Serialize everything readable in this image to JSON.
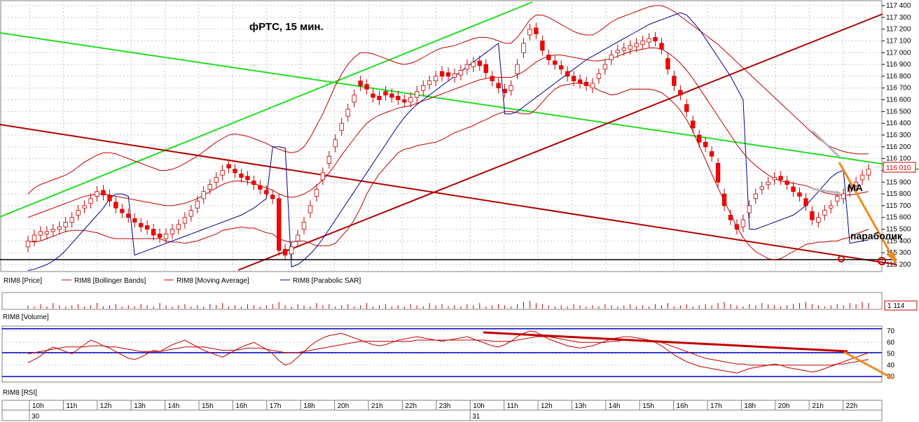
{
  "title": "фРТС, 15 мин.",
  "annotations": {
    "ma": "MA",
    "parabolic": "параболик"
  },
  "legend": [
    {
      "label": "RIM8 [Price]",
      "color": "#000000",
      "kind": "none"
    },
    {
      "label": "RIM8 [Bollinger Bands]",
      "color": "#c00000",
      "kind": "line"
    },
    {
      "label": "RIM8 [Moving Average]",
      "color": "#c00000",
      "kind": "line"
    },
    {
      "label": "RIM8 [Parabolic SAR]",
      "color": "#0000a0",
      "kind": "line"
    }
  ],
  "panel_labels": {
    "volume": "RIM8 [Volume]",
    "rsi": "RIM8 [RSI]"
  },
  "current_price": "116 010",
  "current_volume": "1 114",
  "price_axis": [
    "117 400",
    "117 300",
    "117 200",
    "117 100",
    "117 000",
    "116 900",
    "116 800",
    "116 700",
    "116 600",
    "116 500",
    "116 400",
    "116 300",
    "116 200",
    "116 100",
    "116 000",
    "115 900",
    "115 800",
    "115 700",
    "115 600",
    "115 500",
    "115 400",
    "115 300",
    "115 200"
  ],
  "rsi_axis": [
    "70",
    "60",
    "50",
    "40",
    "30"
  ],
  "time_axis": [
    "10h",
    "11h",
    "12h",
    "13h",
    "14h",
    "15h",
    "16h",
    "17h",
    "18h",
    "20h",
    "21h",
    "22h",
    "23h",
    "10h",
    "11h",
    "12h",
    "13h",
    "14h",
    "15h",
    "16h",
    "17h",
    "18h",
    "20h",
    "21h",
    "22h"
  ],
  "date_labels": [
    "30",
    "31"
  ],
  "colors": {
    "up": "#ffffff",
    "down": "#ff0000",
    "candle_edge": "#c00000",
    "bb": "#c00000",
    "sar": "#000090",
    "green": "#22dd22",
    "trend": "#c00000",
    "orange": "#f08a1c",
    "grid": "#c8c8c8",
    "rsi_band": "#0000c0"
  },
  "chart_data": {
    "type": "candlestick",
    "ylim": [
      115140,
      117420
    ],
    "close": [
      115400,
      115450,
      115480,
      115480,
      115500,
      115520,
      115560,
      115600,
      115660,
      115700,
      115760,
      115820,
      115790,
      115740,
      115680,
      115640,
      115600,
      115560,
      115520,
      115500,
      115450,
      115430,
      115460,
      115500,
      115540,
      115600,
      115660,
      115740,
      115820,
      115880,
      115940,
      116000,
      116020,
      115980,
      115940,
      115920,
      115880,
      115840,
      115800,
      115760,
      115320,
      115280,
      115350,
      115450,
      115560,
      115700,
      115840,
      115980,
      116120,
      116260,
      116400,
      116520,
      116640,
      116720,
      116690,
      116620,
      116600,
      116640,
      116620,
      116600,
      116580,
      116620,
      116670,
      116720,
      116760,
      116800,
      116800,
      116800,
      116820,
      116850,
      116900,
      116920,
      116890,
      116830,
      116760,
      116700,
      116660,
      116720,
      116900,
      117080,
      117200,
      117160,
      117020,
      116940,
      116900,
      116860,
      116800,
      116760,
      116740,
      116720,
      116740,
      116820,
      116900,
      116980,
      117020,
      117040,
      117060,
      117080,
      117100,
      117120,
      117100,
      117030,
      116860,
      116720,
      116640,
      116500,
      116360,
      116240,
      116200,
      116120,
      115900,
      115700,
      115580,
      115500,
      115580,
      115700,
      115800,
      115860,
      115900,
      115940,
      115920,
      115880,
      115820,
      115780,
      115700,
      115580,
      115600,
      115660,
      115700,
      115780,
      115800,
      115860,
      115900,
      115960,
      116010
    ],
    "open": [
      115350,
      115400,
      115450,
      115460,
      115480,
      115500,
      115520,
      115560,
      115620,
      115680,
      115720,
      115780,
      115830,
      115790,
      115730,
      115670,
      115630,
      115590,
      115550,
      115530,
      115500,
      115460,
      115420,
      115460,
      115500,
      115550,
      115610,
      115680,
      115760,
      115840,
      115900,
      115960,
      116050,
      116010,
      115970,
      115950,
      115910,
      115870,
      115830,
      115790,
      115760,
      115330,
      115290,
      115400,
      115500,
      115640,
      115780,
      115920,
      116060,
      116200,
      116340,
      116460,
      116580,
      116760,
      116730,
      116650,
      116630,
      116670,
      116650,
      116630,
      116600,
      116580,
      116620,
      116680,
      116730,
      116760,
      116840,
      116830,
      116790,
      116810,
      116860,
      116880,
      116930,
      116900,
      116800,
      116740,
      116690,
      116680,
      116820,
      117000,
      117150,
      117210,
      117100,
      116980,
      116930,
      116890,
      116840,
      116800,
      116770,
      116750,
      116700,
      116780,
      116860,
      116940,
      117000,
      117020,
      117030,
      117050,
      117070,
      117090,
      117130,
      117080,
      116950,
      116800,
      116680,
      116560,
      116420,
      116300,
      116240,
      116160,
      116060,
      115800,
      115620,
      115540,
      115520,
      115640,
      115760,
      115840,
      115880,
      115920,
      115950,
      115910,
      115860,
      115810,
      115760,
      115650,
      115560,
      115620,
      115680,
      115740,
      115760,
      115820,
      115870,
      115920,
      115960
    ],
    "bb_upper": [
      115800,
      115850,
      115880,
      115900,
      115920,
      115940,
      115960,
      115990,
      116030,
      116070,
      116100,
      116130,
      116150,
      116150,
      116140,
      116120,
      116100,
      116080,
      116060,
      116040,
      116020,
      116000,
      116000,
      116010,
      116030,
      116060,
      116090,
      116120,
      116160,
      116200,
      116240,
      116270,
      116300,
      116310,
      116300,
      116290,
      116270,
      116250,
      116230,
      116200,
      116180,
      116160,
      116150,
      116160,
      116200,
      116280,
      116380,
      116480,
      116600,
      116720,
      116820,
      116900,
      116960,
      117000,
      117000,
      116990,
      116970,
      116950,
      116930,
      116910,
      116900,
      116910,
      116930,
      116960,
      116990,
      117020,
      117040,
      117050,
      117060,
      117080,
      117100,
      117120,
      117130,
      117130,
      117120,
      117100,
      117080,
      117080,
      117130,
      117200,
      117280,
      117320,
      117320,
      117300,
      117270,
      117240,
      117210,
      117180,
      117160,
      117150,
      117150,
      117180,
      117220,
      117260,
      117290,
      117310,
      117330,
      117350,
      117370,
      117390,
      117400,
      117400,
      117380,
      117350,
      117310,
      117270,
      117230,
      117190,
      117150,
      117110,
      117070,
      117020,
      116970,
      116920,
      116870,
      116820,
      116770,
      116720,
      116670,
      116620,
      116570,
      116520,
      116470,
      116420,
      116370,
      116320,
      116270,
      116230,
      116200,
      116180,
      116160,
      116150,
      116140,
      116140,
      116140
    ],
    "bb_middle": [
      115600,
      115620,
      115640,
      115660,
      115680,
      115700,
      115720,
      115740,
      115760,
      115780,
      115790,
      115800,
      115800,
      115790,
      115780,
      115770,
      115760,
      115750,
      115740,
      115730,
      115720,
      115710,
      115700,
      115700,
      115710,
      115720,
      115740,
      115760,
      115790,
      115820,
      115850,
      115880,
      115900,
      115910,
      115910,
      115900,
      115890,
      115870,
      115850,
      115830,
      115800,
      115780,
      115770,
      115780,
      115800,
      115830,
      115870,
      115920,
      115980,
      116050,
      116130,
      116200,
      116270,
      116340,
      116400,
      116440,
      116470,
      116490,
      116510,
      116530,
      116540,
      116550,
      116570,
      116590,
      116610,
      116630,
      116650,
      116670,
      116690,
      116710,
      116730,
      116750,
      116770,
      116780,
      116790,
      116790,
      116790,
      116790,
      116810,
      116840,
      116880,
      116920,
      116950,
      116970,
      116980,
      116980,
      116970,
      116960,
      116950,
      116940,
      116930,
      116930,
      116940,
      116950,
      116970,
      116990,
      117010,
      117020,
      117030,
      117040,
      117040,
      117030,
      117000,
      116960,
      116910,
      116850,
      116780,
      116700,
      116620,
      116540,
      116460,
      116380,
      116300,
      116220,
      116150,
      116090,
      116040,
      116000,
      115960,
      115930,
      115910,
      115900,
      115890,
      115880,
      115870,
      115850,
      115830,
      115810,
      115800,
      115790,
      115790,
      115790,
      115800,
      115810,
      115820
    ],
    "sar": [
      115150,
      115160,
      115180,
      115200,
      115230,
      115270,
      115320,
      115380,
      115440,
      115500,
      115560,
      115620,
      115680,
      115760,
      115800,
      115800,
      115780,
      115280,
      115300,
      115320,
      115340,
      115360,
      115380,
      115400,
      115420,
      115440,
      115460,
      115480,
      115500,
      115520,
      115540,
      115560,
      115580,
      115600,
      115620,
      115650,
      115680,
      115720,
      115760,
      116200,
      116200,
      116190,
      115180,
      115200,
      115240,
      115290,
      115350,
      115420,
      115500,
      115580,
      115660,
      115740,
      115820,
      115900,
      115980,
      116060,
      116140,
      116220,
      116300,
      116380,
      116450,
      116510,
      116560,
      116600,
      116640,
      116680,
      116720,
      116760,
      116800,
      116840,
      116880,
      116920,
      116960,
      117000,
      117040,
      117080,
      116480,
      116480,
      116500,
      116540,
      116580,
      116620,
      116660,
      116700,
      116740,
      116780,
      116820,
      116860,
      116900,
      116940,
      116970,
      117000,
      117030,
      117060,
      117090,
      117120,
      117150,
      117180,
      117210,
      117240,
      117260,
      117280,
      117300,
      117320,
      117340,
      117320,
      117260,
      117200,
      117120,
      117040,
      116960,
      116880,
      116800,
      116700,
      116600,
      115500,
      115500,
      115520,
      115540,
      115560,
      115580,
      115600,
      115620,
      115660,
      115700,
      115760,
      115820,
      115880,
      115940,
      115980,
      116000,
      115380,
      115390,
      115400,
      115410
    ],
    "volume": [
      3,
      2,
      4,
      2,
      5,
      3,
      2,
      3,
      4,
      2,
      3,
      5,
      2,
      3,
      4,
      2,
      3,
      2,
      4,
      3,
      2,
      5,
      3,
      2,
      3,
      4,
      2,
      3,
      2,
      4,
      3,
      5,
      2,
      3,
      2,
      4,
      3,
      2,
      3,
      4,
      6,
      3,
      2,
      4,
      3,
      2,
      5,
      3,
      4,
      2,
      3,
      4,
      2,
      3,
      5,
      2,
      3,
      4,
      2,
      3,
      2,
      4,
      3,
      2,
      5,
      3,
      4,
      2,
      3,
      2,
      4,
      3,
      5,
      2,
      3,
      4,
      3,
      2,
      4,
      6,
      7,
      5,
      4,
      3,
      2,
      3,
      2,
      4,
      3,
      2,
      3,
      2,
      4,
      3,
      2,
      3,
      4,
      2,
      3,
      2,
      4,
      3,
      5,
      2,
      3,
      4,
      2,
      3,
      4,
      3,
      5,
      6,
      4,
      3,
      2,
      4,
      3,
      5,
      4,
      3,
      2,
      3,
      4,
      5,
      6,
      4,
      3,
      2,
      3,
      4,
      3,
      5,
      4,
      6,
      5
    ],
    "rsi": [
      42,
      45,
      48,
      53,
      56,
      54,
      52,
      50,
      54,
      58,
      62,
      60,
      57,
      55,
      52,
      49,
      46,
      45,
      47,
      50,
      53,
      52,
      55,
      58,
      60,
      62,
      59,
      56,
      53,
      51,
      49,
      47,
      50,
      53,
      56,
      58,
      60,
      57,
      54,
      50,
      44,
      40,
      42,
      47,
      52,
      57,
      61,
      64,
      66,
      67,
      68,
      66,
      64,
      62,
      60,
      58,
      57,
      58,
      60,
      62,
      63,
      64,
      65,
      64,
      63,
      62,
      61,
      62,
      63,
      64,
      65,
      63,
      61,
      59,
      57,
      56,
      58,
      61,
      65,
      68,
      70,
      69,
      66,
      63,
      61,
      59,
      57,
      56,
      55,
      56,
      57,
      59,
      61,
      63,
      64,
      65,
      65,
      64,
      63,
      62,
      60,
      57,
      53,
      49,
      46,
      43,
      41,
      39,
      38,
      37,
      36,
      35,
      34,
      33,
      35,
      37,
      38,
      39,
      40,
      41,
      40,
      38,
      37,
      36,
      35,
      34,
      35,
      37,
      39,
      41,
      43,
      45,
      47,
      49,
      51
    ],
    "rsi_ma": [
      50,
      51,
      52,
      53,
      54,
      55,
      56,
      56,
      56,
      56,
      57,
      57,
      57,
      56,
      56,
      55,
      54,
      53,
      52,
      52,
      52,
      52,
      53,
      54,
      55,
      56,
      56,
      56,
      56,
      55,
      54,
      53,
      53,
      53,
      54,
      55,
      55,
      55,
      54,
      53,
      52,
      51,
      51,
      51,
      52,
      53,
      54,
      55,
      56,
      57,
      58,
      59,
      60,
      61,
      61,
      61,
      61,
      61,
      61,
      61,
      61,
      61,
      62,
      62,
      62,
      62,
      62,
      62,
      62,
      62,
      62,
      62,
      62,
      62,
      61,
      61,
      61,
      61,
      62,
      63,
      64,
      65,
      65,
      65,
      64,
      63,
      62,
      61,
      60,
      60,
      60,
      60,
      60,
      61,
      61,
      62,
      62,
      62,
      62,
      62,
      61,
      60,
      58,
      56,
      54,
      52,
      50,
      48,
      46,
      45,
      44,
      43,
      42,
      41,
      41,
      40,
      40,
      40,
      40,
      40,
      40,
      40,
      40,
      40,
      40,
      40,
      40,
      40,
      40,
      41,
      41,
      42,
      43,
      44,
      45
    ],
    "rsi_levels": [
      72,
      51,
      30
    ]
  }
}
